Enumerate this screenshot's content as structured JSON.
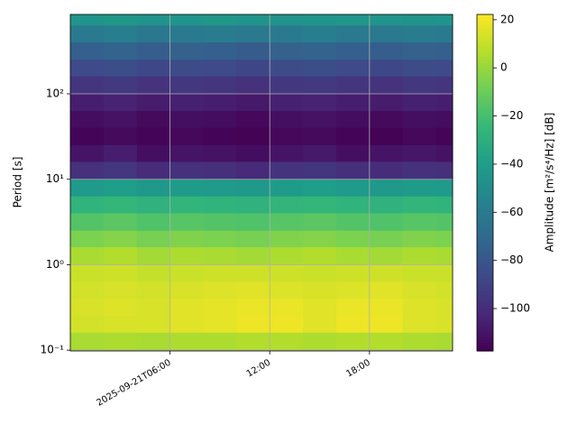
{
  "chart_data": {
    "type": "heatmap",
    "ylabel": "Period [s]",
    "colorbar_label": "Amplitude [m²/s⁴/Hz] [dB]",
    "colormap": "viridis",
    "ylog": true,
    "grid": true,
    "x_edges": [
      0,
      2,
      4,
      6,
      8,
      10,
      12,
      14,
      16,
      18,
      20,
      22,
      23
    ],
    "y_edges": [
      850,
      630,
      400,
      250,
      160,
      100,
      63,
      40,
      25,
      16,
      10,
      6.3,
      4,
      2.5,
      1.6,
      1,
      0.63,
      0.4,
      0.25,
      0.16,
      0.098
    ],
    "xlim": [
      0,
      23
    ],
    "ylim": [
      0.098,
      850
    ],
    "xticks": [
      {
        "value": 6,
        "label": "2025-09-21T06:00"
      },
      {
        "value": 12,
        "label": "12:00"
      },
      {
        "value": 18,
        "label": "18:00"
      }
    ],
    "yticks": [
      {
        "value": 0.1,
        "label": "10⁻¹"
      },
      {
        "value": 1,
        "label": "10⁰"
      },
      {
        "value": 10,
        "label": "10¹"
      },
      {
        "value": 100,
        "label": "10²"
      }
    ],
    "clim": [
      -117.6,
      22.2
    ],
    "cticks": [
      {
        "value": -100,
        "label": "−100"
      },
      {
        "value": -80,
        "label": "−80"
      },
      {
        "value": -60,
        "label": "−60"
      },
      {
        "value": -40,
        "label": "−40"
      },
      {
        "value": -20,
        "label": "−20"
      },
      0,
      20
    ],
    "z": [
      [
        -45,
        -44,
        -46,
        -45,
        -44,
        -45,
        -46,
        -45,
        -44,
        -45,
        -46,
        -45
      ],
      [
        -60,
        -58,
        -62,
        -60,
        -59,
        -61,
        -60,
        -58,
        -60,
        -61,
        -59,
        -60
      ],
      [
        -75,
        -73,
        -76,
        -74,
        -75,
        -77,
        -74,
        -73,
        -75,
        -76,
        -74,
        -75
      ],
      [
        -86,
        -84,
        -87,
        -85,
        -86,
        -88,
        -85,
        -84,
        -86,
        -87,
        -85,
        -86
      ],
      [
        -96,
        -94,
        -97,
        -95,
        -96,
        -98,
        -95,
        -94,
        -96,
        -97,
        -95,
        -96
      ],
      [
        -106,
        -104,
        -107,
        -105,
        -106,
        -108,
        -105,
        -104,
        -106,
        -107,
        -105,
        -106
      ],
      [
        -113,
        -111,
        -114,
        -112,
        -113,
        -115,
        -112,
        -111,
        -113,
        -114,
        -112,
        -113
      ],
      [
        -116,
        -114,
        -116,
        -115,
        -116,
        -117,
        -115,
        -114,
        -116,
        -117,
        -115,
        -116
      ],
      [
        -110,
        -106,
        -112,
        -110,
        -111,
        -113,
        -110,
        -108,
        -112,
        -110,
        -109,
        -111
      ],
      [
        -98,
        -95,
        -100,
        -98,
        -99,
        -101,
        -97,
        -96,
        -99,
        -100,
        -98,
        -99
      ],
      [
        -42,
        -40,
        -43,
        -41,
        -42,
        -43,
        -41,
        -40,
        -42,
        -43,
        -41,
        -42
      ],
      [
        -27,
        -25,
        -28,
        -26,
        -27,
        -28,
        -26,
        -25,
        -27,
        -28,
        -26,
        -27
      ],
      [
        -16,
        -14,
        -17,
        -15,
        -16,
        -17,
        -15,
        -14,
        -16,
        -17,
        -15,
        -16
      ],
      [
        -6,
        -4,
        -7,
        -5,
        -6,
        -7,
        -5,
        -4,
        -6,
        -7,
        -5,
        -6
      ],
      [
        4,
        6,
        3,
        5,
        4,
        3,
        5,
        6,
        4,
        3,
        5,
        4
      ],
      [
        11,
        12,
        10,
        11,
        12,
        12,
        12,
        11,
        12,
        12,
        11,
        11
      ],
      [
        13,
        14,
        13,
        14,
        15,
        16,
        15,
        14,
        15,
        16,
        14,
        13
      ],
      [
        14,
        15,
        14,
        16,
        17,
        18,
        18,
        16,
        18,
        18,
        15,
        14
      ],
      [
        13,
        14,
        14,
        16,
        17,
        19,
        19,
        16,
        19,
        19,
        15,
        14
      ],
      [
        4,
        5,
        4,
        5,
        5,
        6,
        6,
        5,
        6,
        6,
        5,
        4
      ]
    ]
  }
}
